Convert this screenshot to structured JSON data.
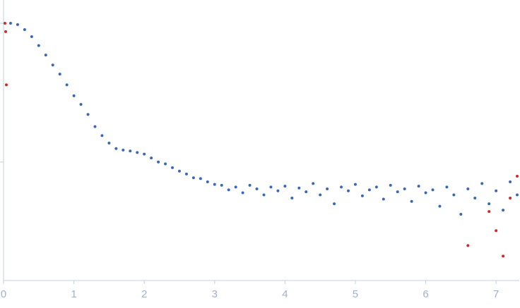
{
  "chart_data": {
    "type": "scatter",
    "ylog": true,
    "xlim": [
      0,
      7.33
    ],
    "xticks": [
      0,
      1,
      2,
      3,
      4,
      5,
      6,
      7
    ],
    "ylim": [
      0.014,
      1.47
    ],
    "yticks": [
      0.1,
      1
    ],
    "series": [
      {
        "color": "#3b67b9",
        "x": [
          0.1,
          0.2,
          0.3,
          0.4,
          0.5,
          0.6,
          0.7,
          0.8,
          0.9,
          1.0,
          1.1,
          1.2,
          1.3,
          1.4,
          1.5,
          1.6,
          1.7,
          1.8,
          1.9,
          2.0,
          2.1,
          2.2,
          2.3,
          2.4,
          2.5,
          2.6,
          2.7,
          2.8,
          2.9,
          3.0,
          3.1,
          3.2,
          3.3,
          3.4,
          3.5,
          3.6,
          3.7,
          3.8,
          3.9,
          4.0,
          4.1,
          4.2,
          4.3,
          4.4,
          4.5,
          4.6,
          4.7,
          4.8,
          4.9,
          5.0,
          5.1,
          5.2,
          5.3,
          5.4,
          5.5,
          5.6,
          5.7,
          5.8,
          5.9,
          6.0,
          6.1,
          6.2,
          6.3,
          6.4,
          6.5,
          6.6,
          6.7,
          6.8,
          6.9,
          7.0,
          7.1,
          7.2,
          7.3
        ],
        "values": [
          1.0,
          0.977,
          0.9,
          0.8,
          0.69,
          0.59,
          0.5,
          0.43,
          0.36,
          0.3,
          0.26,
          0.22,
          0.18,
          0.155,
          0.137,
          0.125,
          0.122,
          0.12,
          0.117,
          0.114,
          0.107,
          0.1,
          0.097,
          0.091,
          0.086,
          0.082,
          0.077,
          0.076,
          0.072,
          0.069,
          0.068,
          0.063,
          0.066,
          0.06,
          0.068,
          0.064,
          0.058,
          0.066,
          0.062,
          0.067,
          0.055,
          0.065,
          0.061,
          0.07,
          0.058,
          0.064,
          0.05,
          0.066,
          0.062,
          0.069,
          0.057,
          0.063,
          0.066,
          0.054,
          0.068,
          0.061,
          0.064,
          0.052,
          0.067,
          0.06,
          0.063,
          0.048,
          0.066,
          0.058,
          0.042,
          0.064,
          0.055,
          0.07,
          0.05,
          0.062,
          0.045,
          0.072,
          0.058
        ]
      },
      {
        "color": "#d62728",
        "x": [
          0.02,
          0.03,
          0.04,
          6.6,
          6.9,
          7.0,
          7.1,
          7.2,
          7.3
        ],
        "values": [
          1.0,
          0.87,
          0.36,
          0.025,
          0.044,
          0.032,
          0.021,
          0.055,
          0.079
        ]
      }
    ]
  }
}
